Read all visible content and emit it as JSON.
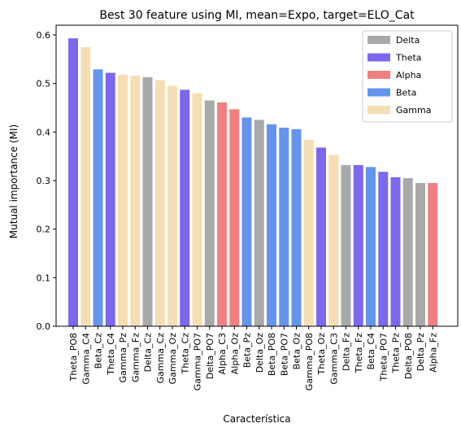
{
  "chart_data": {
    "type": "bar",
    "title": "Best 30 feature using MI, mean=Expo, target=ELO_Cat",
    "xlabel": "Característica",
    "ylabel": "Mutual importance (MI)",
    "ylim": [
      0,
      0.62
    ],
    "yticks": [
      0.0,
      0.1,
      0.2,
      0.3,
      0.4,
      0.5,
      0.6
    ],
    "ytick_labels": [
      "0.0",
      "0.1",
      "0.2",
      "0.3",
      "0.4",
      "0.5",
      "0.6"
    ],
    "grid": false,
    "legend_position": "top-right",
    "legend": [
      {
        "label": "Delta",
        "color": "#a9a9a9"
      },
      {
        "label": "Theta",
        "color": "#7b68ee"
      },
      {
        "label": "Alpha",
        "color": "#f08080"
      },
      {
        "label": "Beta",
        "color": "#6495ed"
      },
      {
        "label": "Gamma",
        "color": "#f5deb3"
      }
    ],
    "categories": [
      "Theta_PO8",
      "Gamma_C4",
      "Beta_Cz",
      "Theta_C4",
      "Gamma_Pz",
      "Gamma_Fz",
      "Delta_Cz",
      "Gamma_Cz",
      "Gamma_Oz",
      "Theta_Cz",
      "Gamma_PO7",
      "Delta_PO7",
      "Alpha_C3",
      "Alpha_Oz",
      "Beta_Pz",
      "Delta_Oz",
      "Beta_PO8",
      "Beta_PO7",
      "Beta_Oz",
      "Gamma_PO8",
      "Theta_Oz",
      "Gamma_C3",
      "Delta_Fz",
      "Theta_Fz",
      "Beta_C4",
      "Theta_PO7",
      "Theta_Pz",
      "Delta_PO8",
      "Delta_Pz",
      "Alpha_Fz"
    ],
    "values": [
      0.593,
      0.575,
      0.529,
      0.522,
      0.518,
      0.516,
      0.513,
      0.507,
      0.495,
      0.487,
      0.48,
      0.465,
      0.461,
      0.447,
      0.43,
      0.425,
      0.416,
      0.409,
      0.406,
      0.384,
      0.368,
      0.353,
      0.332,
      0.332,
      0.328,
      0.318,
      0.307,
      0.305,
      0.295,
      0.295
    ],
    "bands": [
      "Theta",
      "Gamma",
      "Beta",
      "Theta",
      "Gamma",
      "Gamma",
      "Delta",
      "Gamma",
      "Gamma",
      "Theta",
      "Gamma",
      "Delta",
      "Alpha",
      "Alpha",
      "Beta",
      "Delta",
      "Beta",
      "Beta",
      "Beta",
      "Gamma",
      "Theta",
      "Gamma",
      "Delta",
      "Theta",
      "Beta",
      "Theta",
      "Theta",
      "Delta",
      "Delta",
      "Alpha"
    ]
  }
}
